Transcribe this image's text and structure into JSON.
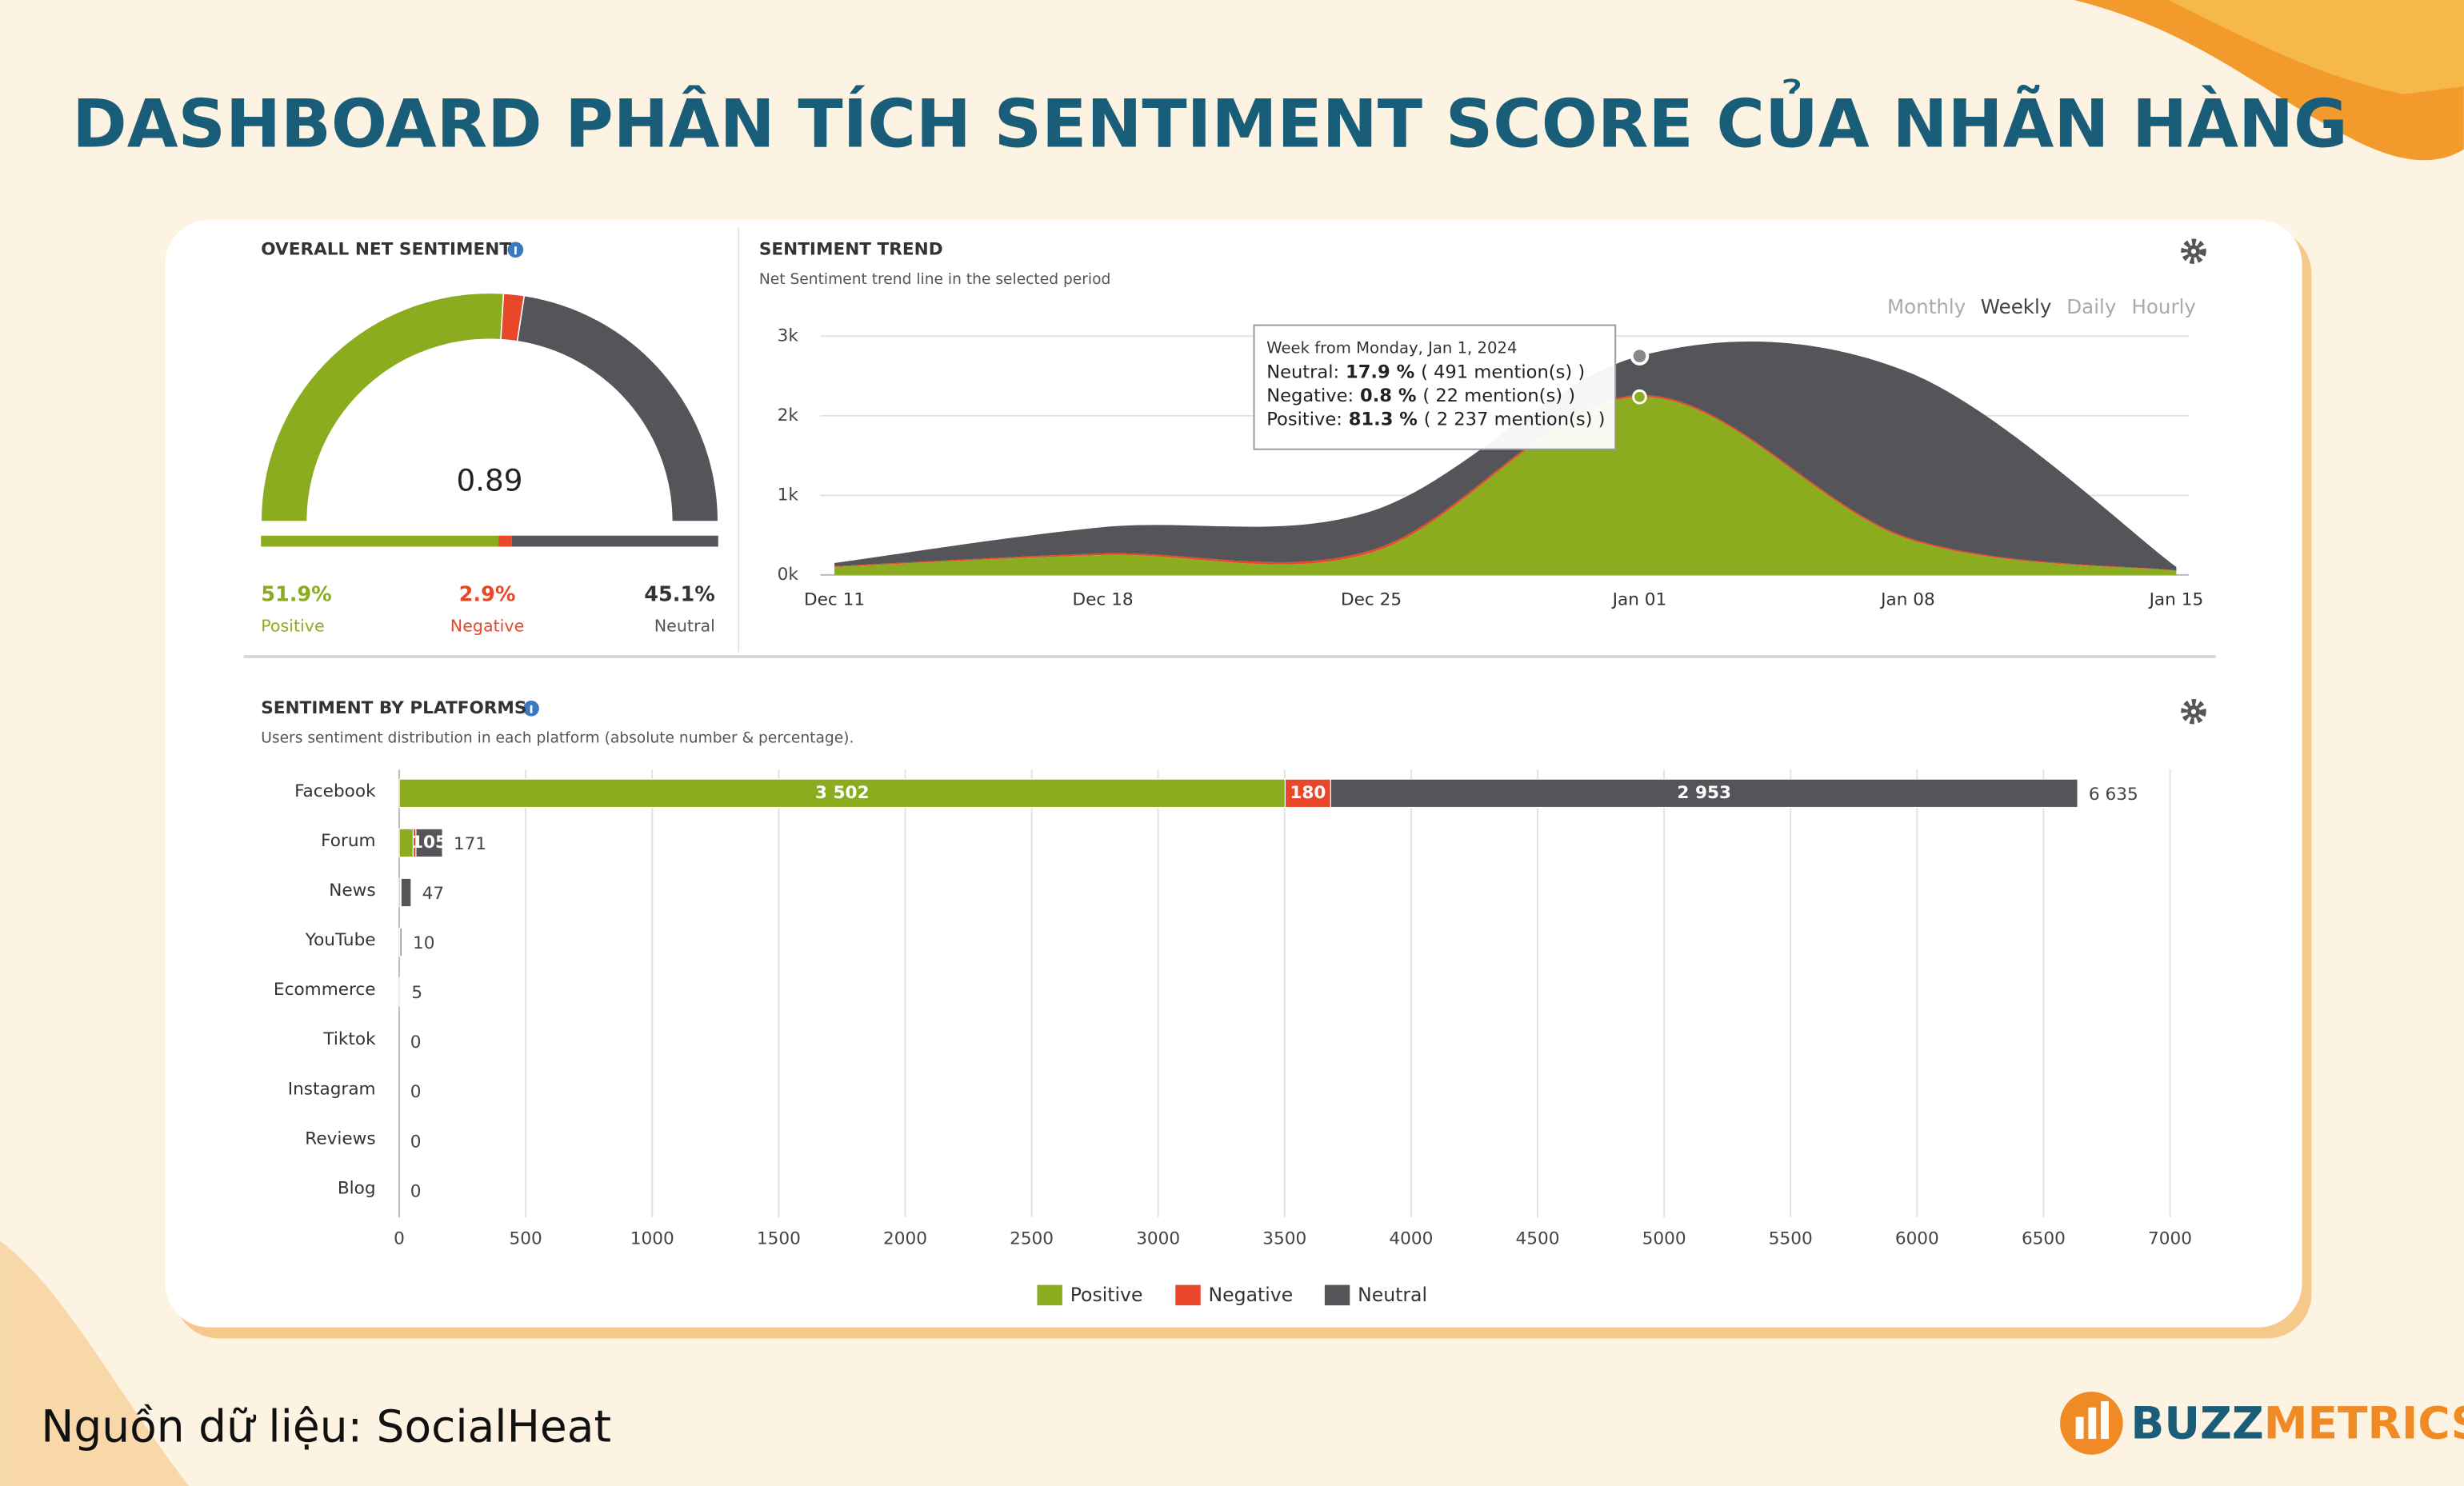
{
  "title": "DASHBOARD PHÂN TÍCH SENTIMENT SCORE CỦA NHÃN HÀNG",
  "source": "Nguồn dữ liệu: SocialHeat",
  "brand": {
    "first": "BUZZ",
    "second": "METRICS"
  },
  "chart_data": [
    {
      "type": "gauge",
      "title": "OVERALL NET SENTIMENT",
      "value": 0.89,
      "categories": [
        "Positive",
        "Negative",
        "Neutral"
      ],
      "values": [
        51.9,
        2.9,
        45.1
      ],
      "value_labels": [
        "51.9%",
        "2.9%",
        "45.1%"
      ],
      "colors": [
        "#8aac1e",
        "#e8472a",
        "#555559"
      ]
    },
    {
      "type": "area",
      "title": "SENTIMENT TREND",
      "subtitle": "Net Sentiment trend line in the selected period",
      "periods": [
        "Monthly",
        "Weekly",
        "Daily",
        "Hourly"
      ],
      "selected_period": "Weekly",
      "categories": [
        "Dec 11",
        "Dec 18",
        "Dec 25",
        "Jan 01",
        "Jan 08",
        "Jan 15"
      ],
      "series": [
        {
          "name": "Positive",
          "color": "#8aac1e",
          "values": [
            100,
            250,
            280,
            2237,
            450,
            50
          ]
        },
        {
          "name": "Negative",
          "color": "#e8472a",
          "values": [
            10,
            20,
            30,
            22,
            20,
            5
          ]
        },
        {
          "name": "Neutral",
          "color": "#555559",
          "values": [
            40,
            330,
            490,
            491,
            2080,
            45
          ]
        }
      ],
      "ylim": [
        0,
        3000
      ],
      "yticks": [
        {
          "value": 0,
          "label": "0k"
        },
        {
          "value": 1000,
          "label": "1k"
        },
        {
          "value": 2000,
          "label": "2k"
        },
        {
          "value": 3000,
          "label": "3k"
        }
      ],
      "grid": true,
      "tooltip_category": "Jan 01",
      "tooltip": {
        "title": "Week from Monday, Jan 1, 2024",
        "rows": [
          {
            "label": "Neutral:",
            "percent": "17.9 %",
            "count": "( 491 mention(s) )"
          },
          {
            "label": "Negative:",
            "percent": "0.8 %",
            "count": "( 22 mention(s) )"
          },
          {
            "label": "Positive:",
            "percent": "81.3 %",
            "count": "( 2 237 mention(s) )"
          }
        ]
      }
    },
    {
      "type": "hbar",
      "title": "SENTIMENT BY PLATFORMS",
      "subtitle": "Users sentiment distribution in each platform (absolute number & percentage).",
      "categories": [
        "Facebook",
        "Forum",
        "News",
        "YouTube",
        "Ecommerce",
        "Tiktok",
        "Instagram",
        "Reviews",
        "Blog"
      ],
      "series": [
        {
          "name": "Positive",
          "color": "#8aac1e",
          "values": [
            3502,
            55,
            5,
            3,
            1,
            0,
            0,
            0,
            0
          ],
          "value_labels": [
            "3 502",
            null,
            null,
            null,
            null,
            null,
            null,
            null,
            null
          ]
        },
        {
          "name": "Negative",
          "color": "#e8472a",
          "values": [
            180,
            11,
            2,
            0,
            0,
            0,
            0,
            0,
            0
          ],
          "value_labels": [
            "180",
            null,
            null,
            null,
            null,
            null,
            null,
            null,
            null
          ]
        },
        {
          "name": "Neutral",
          "color": "#555559",
          "values": [
            2953,
            105,
            40,
            7,
            4,
            0,
            0,
            0,
            0
          ],
          "value_labels": [
            "2 953",
            "105",
            null,
            null,
            null,
            null,
            null,
            null,
            null
          ]
        }
      ],
      "totals": [
        {
          "value": 6635,
          "label": "6 635"
        },
        171,
        47,
        10,
        5,
        0,
        0,
        0,
        0
      ],
      "xlim": [
        0,
        7000
      ],
      "xticks": [
        0,
        500,
        1000,
        1500,
        2000,
        2500,
        3000,
        3500,
        4000,
        4500,
        5000,
        5500,
        6000,
        6500,
        7000
      ],
      "grid": true,
      "legend": "bottom"
    }
  ]
}
